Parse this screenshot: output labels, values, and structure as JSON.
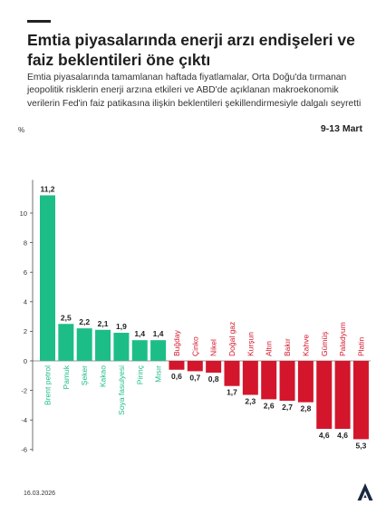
{
  "header": {
    "title": "Emtia piyasalarında enerji arzı endişeleri ve faiz beklentileri öne çıktı",
    "subtitle": "Emtia piyasalarında tamamlanan haftada fiyatlamalar, Orta Doğu'da tırmanan jeopolitik risklerin enerji arzına etkileri ve ABD'de açıklanan makroekonomik verilerin Fed'in faiz patikasına ilişkin beklentileri şekillendirmesiyle dalgalı seyretti",
    "period": "9-13 Mart"
  },
  "footer": {
    "date": "16.03.2026",
    "logo_icon": "aa-logo-icon"
  },
  "colors": {
    "positive": "#1dbd87",
    "negative": "#d3162c",
    "axis": "#333333",
    "grid": "#dcdcdc"
  },
  "chart_data": {
    "type": "bar",
    "ylabel": "%",
    "ylim": [
      -6,
      12
    ],
    "yticks": [
      -6,
      -4,
      -2,
      0,
      2,
      4,
      6,
      8,
      10
    ],
    "categories": [
      "Brent petrol",
      "Pamuk",
      "Şeker",
      "Kakao",
      "Soya fasulyesi",
      "Pirinç",
      "Mısır",
      "Buğday",
      "Çinko",
      "Nikel",
      "Doğal gaz",
      "Kurşun",
      "Altın",
      "Bakır",
      "Kahve",
      "Gümüş",
      "Paladyum",
      "Platin"
    ],
    "values": [
      11.2,
      2.5,
      2.2,
      2.1,
      1.9,
      1.4,
      1.4,
      -0.6,
      -0.7,
      -0.8,
      -1.7,
      -2.3,
      -2.6,
      -2.7,
      -2.8,
      -4.6,
      -4.6,
      -5.3
    ],
    "value_labels": [
      "11,2",
      "2,5",
      "2,2",
      "2,1",
      "1,9",
      "1,4",
      "1,4",
      "0,6",
      "0,7",
      "0,8",
      "1,7",
      "2,3",
      "2,6",
      "2,7",
      "2,8",
      "4,6",
      "4,6",
      "5,3"
    ],
    "legend": "none",
    "grid": false
  }
}
